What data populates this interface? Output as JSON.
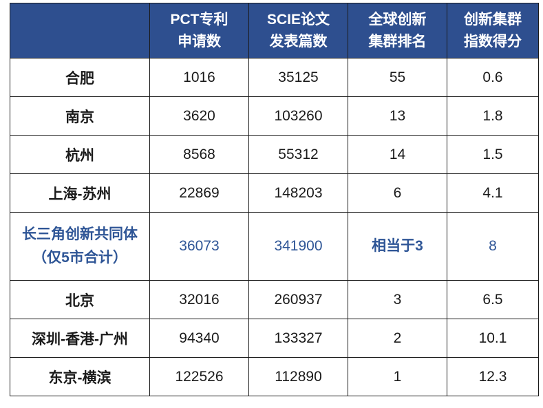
{
  "colors": {
    "header_bg": "#2e4f8f",
    "header_text": "#ffffff",
    "highlight_text": "#2e5596",
    "border": "#1a1a1a"
  },
  "table": {
    "headers": [
      {
        "line1": "",
        "line2": ""
      },
      {
        "line1": "PCT专利",
        "line2": "申请数"
      },
      {
        "line1": "SCIE论文",
        "line2": "发表篇数"
      },
      {
        "line1": "全球创新",
        "line2": "集群排名"
      },
      {
        "line1": "创新集群",
        "line2": "指数得分"
      }
    ],
    "rows": [
      {
        "city": "合肥",
        "pct": "1016",
        "scie": "35125",
        "rank": "55",
        "score": "0.6"
      },
      {
        "city": "南京",
        "pct": "3620",
        "scie": "103260",
        "rank": "13",
        "score": "1.8"
      },
      {
        "city": "杭州",
        "pct": "8568",
        "scie": "55312",
        "rank": "14",
        "score": "1.5"
      },
      {
        "city": "上海-苏州",
        "pct": "22869",
        "scie": "148203",
        "rank": "6",
        "score": "4.1"
      }
    ],
    "highlight_row": {
      "city_line1": "长三角创新共同体",
      "city_line2": "（仅5市合计）",
      "pct": "36073",
      "scie": "341900",
      "rank": "相当于3",
      "score": "8"
    },
    "rows_after": [
      {
        "city": "北京",
        "pct": "32016",
        "scie": "260937",
        "rank": "3",
        "score": "6.5"
      },
      {
        "city": "深圳-香港-广州",
        "pct": "94340",
        "scie": "133327",
        "rank": "2",
        "score": "10.1"
      },
      {
        "city": "东京-横滨",
        "pct": "122526",
        "scie": "112890",
        "rank": "1",
        "score": "12.3"
      }
    ]
  }
}
